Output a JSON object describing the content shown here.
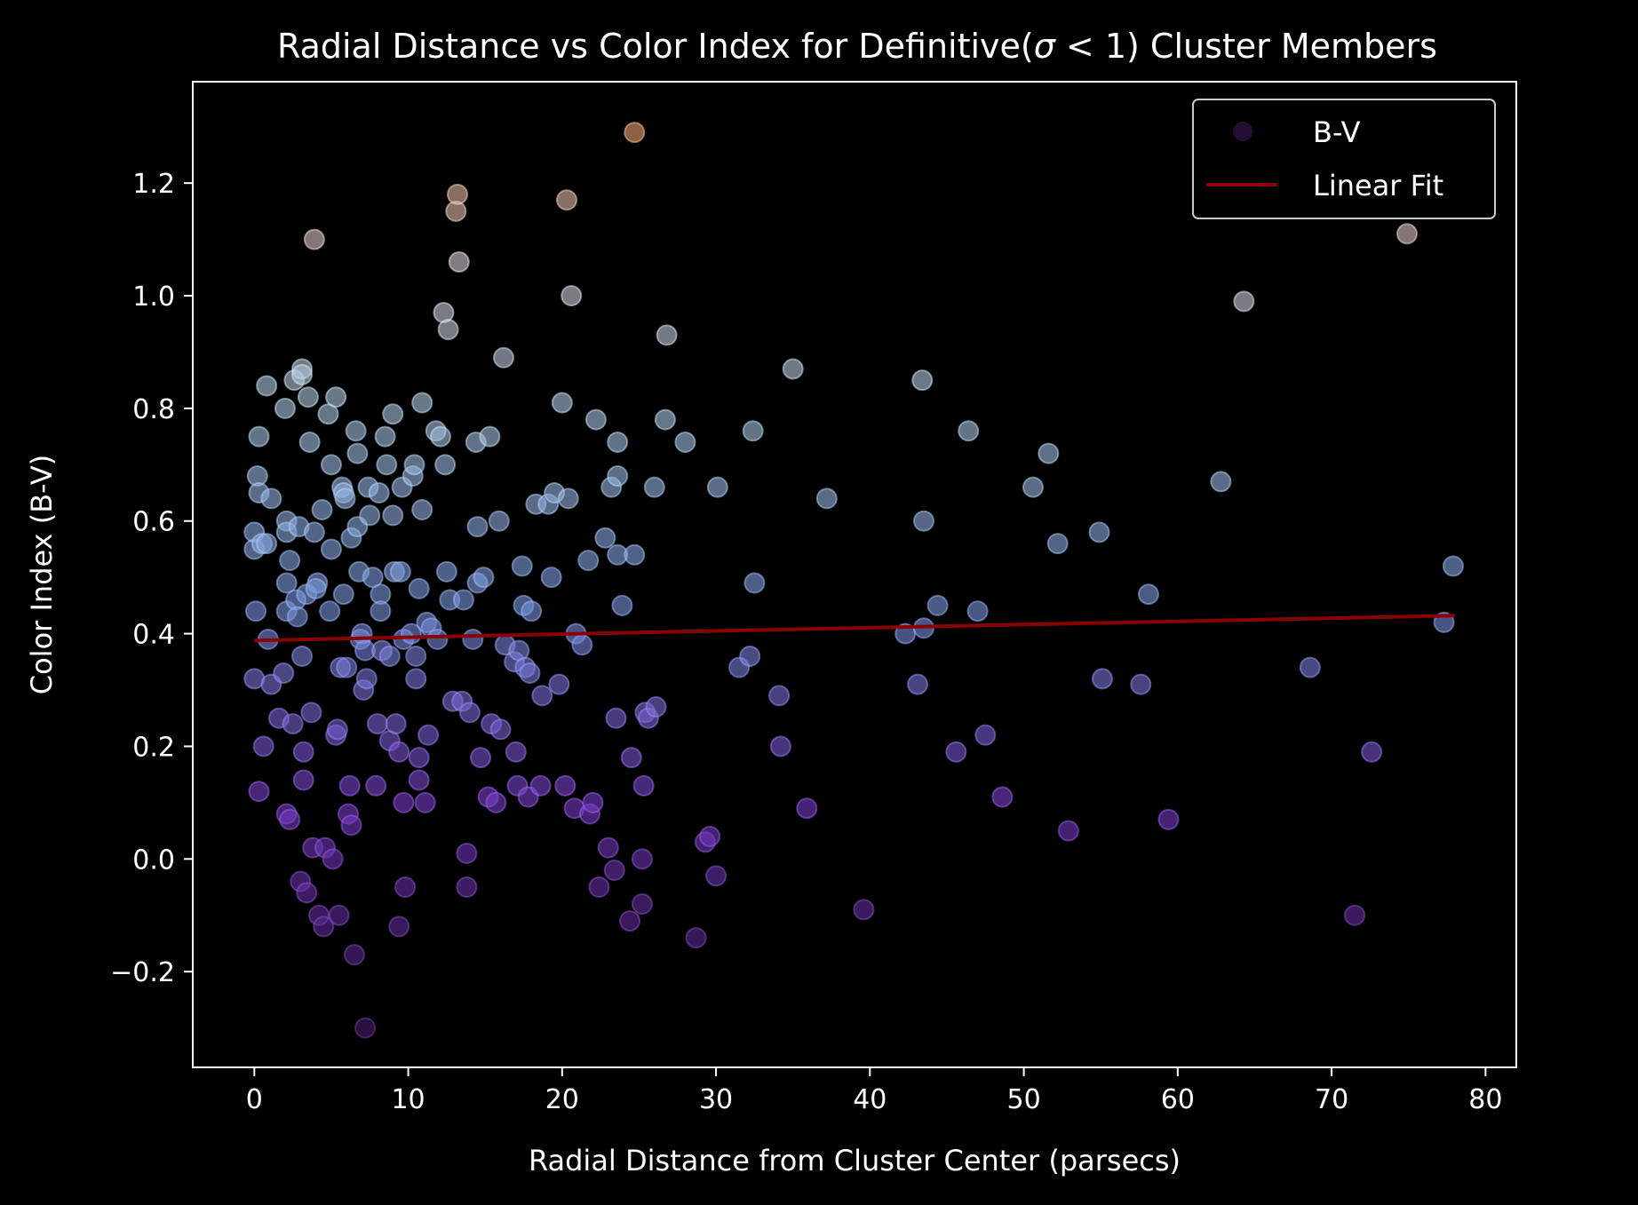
{
  "chart_data": {
    "type": "scatter",
    "title_main": "Radial Distance vs Color Index for Definitive(",
    "title_sigma": "σ",
    "title_rel": " < 1) Cluster Members",
    "xlabel": "Radial Distance from Cluster Center (parsecs)",
    "ylabel": "Color Index (B-V)",
    "xlim": [
      -4,
      82
    ],
    "ylim": [
      -0.37,
      1.38
    ],
    "xticks": [
      0,
      10,
      20,
      30,
      40,
      50,
      60,
      70,
      80
    ],
    "yticks": [
      -0.2,
      0.0,
      0.2,
      0.4,
      0.6,
      0.8,
      1.0,
      1.2
    ],
    "ytick_labels": [
      "−0.2",
      "0.0",
      "0.2",
      "0.4",
      "0.6",
      "0.8",
      "1.0",
      "1.2"
    ],
    "legend_position": "top-right",
    "legend": [
      {
        "label": "B-V",
        "kind": "marker"
      },
      {
        "label": "Linear Fit",
        "kind": "line"
      }
    ],
    "colors": {
      "background": "#000000",
      "fit_line": "#8b0000",
      "colormap_low": "#5a1f8a",
      "colormap_mid": "#8fb3e0",
      "colormap_high": "#e8a070"
    },
    "fit": {
      "x": [
        0,
        78
      ],
      "y": [
        0.388,
        0.432
      ]
    },
    "series": [
      {
        "name": "B-V",
        "points": [
          [
            0.0,
            0.58
          ],
          [
            0.0,
            0.55
          ],
          [
            0.1,
            0.44
          ],
          [
            0.0,
            0.32
          ],
          [
            0.2,
            0.68
          ],
          [
            0.3,
            0.65
          ],
          [
            0.3,
            0.75
          ],
          [
            0.5,
            0.56
          ],
          [
            0.6,
            0.2
          ],
          [
            0.3,
            0.12
          ],
          [
            0.8,
            0.84
          ],
          [
            1.1,
            0.64
          ],
          [
            0.8,
            0.56
          ],
          [
            0.9,
            0.39
          ],
          [
            1.1,
            0.31
          ],
          [
            1.6,
            0.25
          ],
          [
            1.9,
            0.33
          ],
          [
            2.1,
            0.44
          ],
          [
            2.0,
            0.8
          ],
          [
            2.1,
            0.6
          ],
          [
            2.1,
            0.58
          ],
          [
            2.1,
            0.49
          ],
          [
            2.3,
            0.53
          ],
          [
            2.1,
            0.08
          ],
          [
            2.3,
            0.07
          ],
          [
            2.5,
            0.24
          ],
          [
            2.6,
            0.85
          ],
          [
            2.7,
            0.46
          ],
          [
            2.8,
            0.43
          ],
          [
            2.9,
            0.59
          ],
          [
            3.0,
            -0.04
          ],
          [
            3.1,
            0.87
          ],
          [
            3.1,
            0.86
          ],
          [
            3.1,
            0.36
          ],
          [
            3.2,
            0.19
          ],
          [
            3.2,
            0.14
          ],
          [
            3.4,
            -0.06
          ],
          [
            3.4,
            0.47
          ],
          [
            3.5,
            0.82
          ],
          [
            3.6,
            0.74
          ],
          [
            3.7,
            0.26
          ],
          [
            3.8,
            0.02
          ],
          [
            3.9,
            1.1
          ],
          [
            3.9,
            0.58
          ],
          [
            4.1,
            0.49
          ],
          [
            4.0,
            0.48
          ],
          [
            4.2,
            -0.1
          ],
          [
            4.4,
            0.62
          ],
          [
            4.5,
            -0.12
          ],
          [
            4.6,
            0.02
          ],
          [
            4.8,
            0.79
          ],
          [
            4.9,
            0.44
          ],
          [
            5.0,
            0.55
          ],
          [
            5.0,
            0.7
          ],
          [
            5.1,
            0.0
          ],
          [
            5.3,
            0.82
          ],
          [
            5.3,
            0.22
          ],
          [
            5.4,
            0.23
          ],
          [
            5.5,
            -0.1
          ],
          [
            5.6,
            0.34
          ],
          [
            5.7,
            0.66
          ],
          [
            5.8,
            0.47
          ],
          [
            5.8,
            0.65
          ],
          [
            5.9,
            0.64
          ],
          [
            6.0,
            0.34
          ],
          [
            6.1,
            0.08
          ],
          [
            6.2,
            0.13
          ],
          [
            6.3,
            0.57
          ],
          [
            6.3,
            0.06
          ],
          [
            6.5,
            -0.17
          ],
          [
            6.6,
            0.76
          ],
          [
            6.7,
            0.72
          ],
          [
            6.7,
            0.59
          ],
          [
            6.8,
            0.51
          ],
          [
            6.9,
            0.39
          ],
          [
            7.0,
            0.4
          ],
          [
            7.1,
            0.3
          ],
          [
            7.2,
            0.37
          ],
          [
            7.2,
            -0.3
          ],
          [
            7.3,
            0.32
          ],
          [
            7.4,
            0.66
          ],
          [
            7.5,
            0.61
          ],
          [
            7.7,
            0.5
          ],
          [
            7.9,
            0.13
          ],
          [
            8.0,
            0.24
          ],
          [
            8.1,
            0.65
          ],
          [
            8.2,
            0.47
          ],
          [
            8.2,
            0.44
          ],
          [
            8.3,
            0.37
          ],
          [
            8.5,
            0.75
          ],
          [
            8.6,
            0.7
          ],
          [
            8.8,
            0.21
          ],
          [
            8.8,
            0.36
          ],
          [
            9.0,
            0.79
          ],
          [
            9.0,
            0.61
          ],
          [
            9.1,
            0.51
          ],
          [
            9.2,
            0.24
          ],
          [
            9.4,
            0.19
          ],
          [
            9.4,
            -0.12
          ],
          [
            9.5,
            0.51
          ],
          [
            9.6,
            0.66
          ],
          [
            9.7,
            0.39
          ],
          [
            9.7,
            0.1
          ],
          [
            9.8,
            -0.05
          ],
          [
            10.2,
            0.4
          ],
          [
            10.3,
            0.68
          ],
          [
            10.4,
            0.7
          ],
          [
            10.5,
            0.32
          ],
          [
            10.5,
            0.36
          ],
          [
            10.7,
            0.48
          ],
          [
            10.7,
            0.18
          ],
          [
            10.7,
            0.14
          ],
          [
            10.9,
            0.62
          ],
          [
            10.9,
            0.81
          ],
          [
            11.1,
            0.1
          ],
          [
            11.2,
            0.42
          ],
          [
            11.3,
            0.22
          ],
          [
            11.5,
            0.41
          ],
          [
            11.8,
            0.76
          ],
          [
            11.9,
            0.39
          ],
          [
            12.1,
            0.75
          ],
          [
            12.3,
            0.97
          ],
          [
            12.4,
            0.7
          ],
          [
            12.5,
            0.51
          ],
          [
            12.6,
            0.94
          ],
          [
            12.7,
            0.46
          ],
          [
            12.9,
            0.28
          ],
          [
            13.1,
            1.15
          ],
          [
            13.2,
            1.18
          ],
          [
            13.3,
            1.06
          ],
          [
            13.5,
            0.28
          ],
          [
            13.6,
            0.46
          ],
          [
            13.8,
            0.01
          ],
          [
            13.8,
            -0.05
          ],
          [
            14.0,
            0.26
          ],
          [
            14.2,
            0.39
          ],
          [
            14.4,
            0.74
          ],
          [
            14.5,
            0.49
          ],
          [
            14.5,
            0.59
          ],
          [
            14.7,
            0.18
          ],
          [
            14.9,
            0.5
          ],
          [
            15.2,
            0.11
          ],
          [
            15.3,
            0.75
          ],
          [
            15.4,
            0.24
          ],
          [
            15.7,
            0.1
          ],
          [
            15.9,
            0.6
          ],
          [
            16.0,
            0.23
          ],
          [
            16.2,
            0.89
          ],
          [
            16.3,
            0.38
          ],
          [
            16.9,
            0.35
          ],
          [
            17.0,
            0.19
          ],
          [
            17.1,
            0.13
          ],
          [
            17.2,
            0.37
          ],
          [
            17.4,
            0.52
          ],
          [
            17.5,
            0.45
          ],
          [
            17.6,
            0.34
          ],
          [
            17.8,
            0.11
          ],
          [
            17.9,
            0.33
          ],
          [
            18.0,
            0.44
          ],
          [
            18.3,
            0.63
          ],
          [
            18.6,
            0.13
          ],
          [
            18.7,
            0.29
          ],
          [
            19.1,
            0.63
          ],
          [
            19.3,
            0.5
          ],
          [
            19.5,
            0.65
          ],
          [
            19.8,
            0.31
          ],
          [
            20.0,
            0.81
          ],
          [
            20.2,
            0.13
          ],
          [
            20.3,
            1.17
          ],
          [
            20.4,
            0.64
          ],
          [
            20.6,
            1.0
          ],
          [
            20.8,
            0.09
          ],
          [
            20.9,
            0.4
          ],
          [
            21.3,
            0.38
          ],
          [
            21.7,
            0.53
          ],
          [
            21.8,
            0.08
          ],
          [
            22.0,
            0.1
          ],
          [
            22.2,
            0.78
          ],
          [
            22.4,
            -0.05
          ],
          [
            22.8,
            0.57
          ],
          [
            23.0,
            0.02
          ],
          [
            23.2,
            0.66
          ],
          [
            23.4,
            -0.02
          ],
          [
            23.5,
            0.25
          ],
          [
            23.6,
            0.74
          ],
          [
            23.6,
            0.68
          ],
          [
            23.6,
            0.54
          ],
          [
            23.9,
            0.45
          ],
          [
            24.4,
            -0.11
          ],
          [
            24.5,
            0.18
          ],
          [
            24.7,
            1.29
          ],
          [
            24.7,
            0.54
          ],
          [
            25.2,
            -0.08
          ],
          [
            25.2,
            0.0
          ],
          [
            25.3,
            0.13
          ],
          [
            25.4,
            0.26
          ],
          [
            25.6,
            0.25
          ],
          [
            26.0,
            0.66
          ],
          [
            26.1,
            0.27
          ],
          [
            26.7,
            0.78
          ],
          [
            26.8,
            0.93
          ],
          [
            28.0,
            0.74
          ],
          [
            28.7,
            -0.14
          ],
          [
            29.3,
            0.03
          ],
          [
            29.6,
            0.04
          ],
          [
            30.0,
            -0.03
          ],
          [
            30.1,
            0.66
          ],
          [
            31.5,
            0.34
          ],
          [
            32.2,
            0.36
          ],
          [
            32.4,
            0.76
          ],
          [
            32.5,
            0.49
          ],
          [
            34.1,
            0.29
          ],
          [
            34.2,
            0.2
          ],
          [
            35.0,
            0.87
          ],
          [
            35.9,
            0.09
          ],
          [
            37.2,
            0.64
          ],
          [
            39.6,
            -0.09
          ],
          [
            42.3,
            0.4
          ],
          [
            43.1,
            0.31
          ],
          [
            43.4,
            0.85
          ],
          [
            43.5,
            0.6
          ],
          [
            43.5,
            0.41
          ],
          [
            44.4,
            0.45
          ],
          [
            45.6,
            0.19
          ],
          [
            46.4,
            0.76
          ],
          [
            47.0,
            0.44
          ],
          [
            47.5,
            0.22
          ],
          [
            48.6,
            0.11
          ],
          [
            50.6,
            0.66
          ],
          [
            51.6,
            0.72
          ],
          [
            52.2,
            0.56
          ],
          [
            52.9,
            0.05
          ],
          [
            54.9,
            0.58
          ],
          [
            55.1,
            0.32
          ],
          [
            57.6,
            0.31
          ],
          [
            58.1,
            0.47
          ],
          [
            59.4,
            0.07
          ],
          [
            62.8,
            0.67
          ],
          [
            64.3,
            0.99
          ],
          [
            68.6,
            0.34
          ],
          [
            71.5,
            -0.1
          ],
          [
            72.6,
            0.19
          ],
          [
            74.9,
            1.11
          ],
          [
            77.3,
            0.42
          ],
          [
            77.9,
            0.52
          ]
        ]
      }
    ]
  }
}
